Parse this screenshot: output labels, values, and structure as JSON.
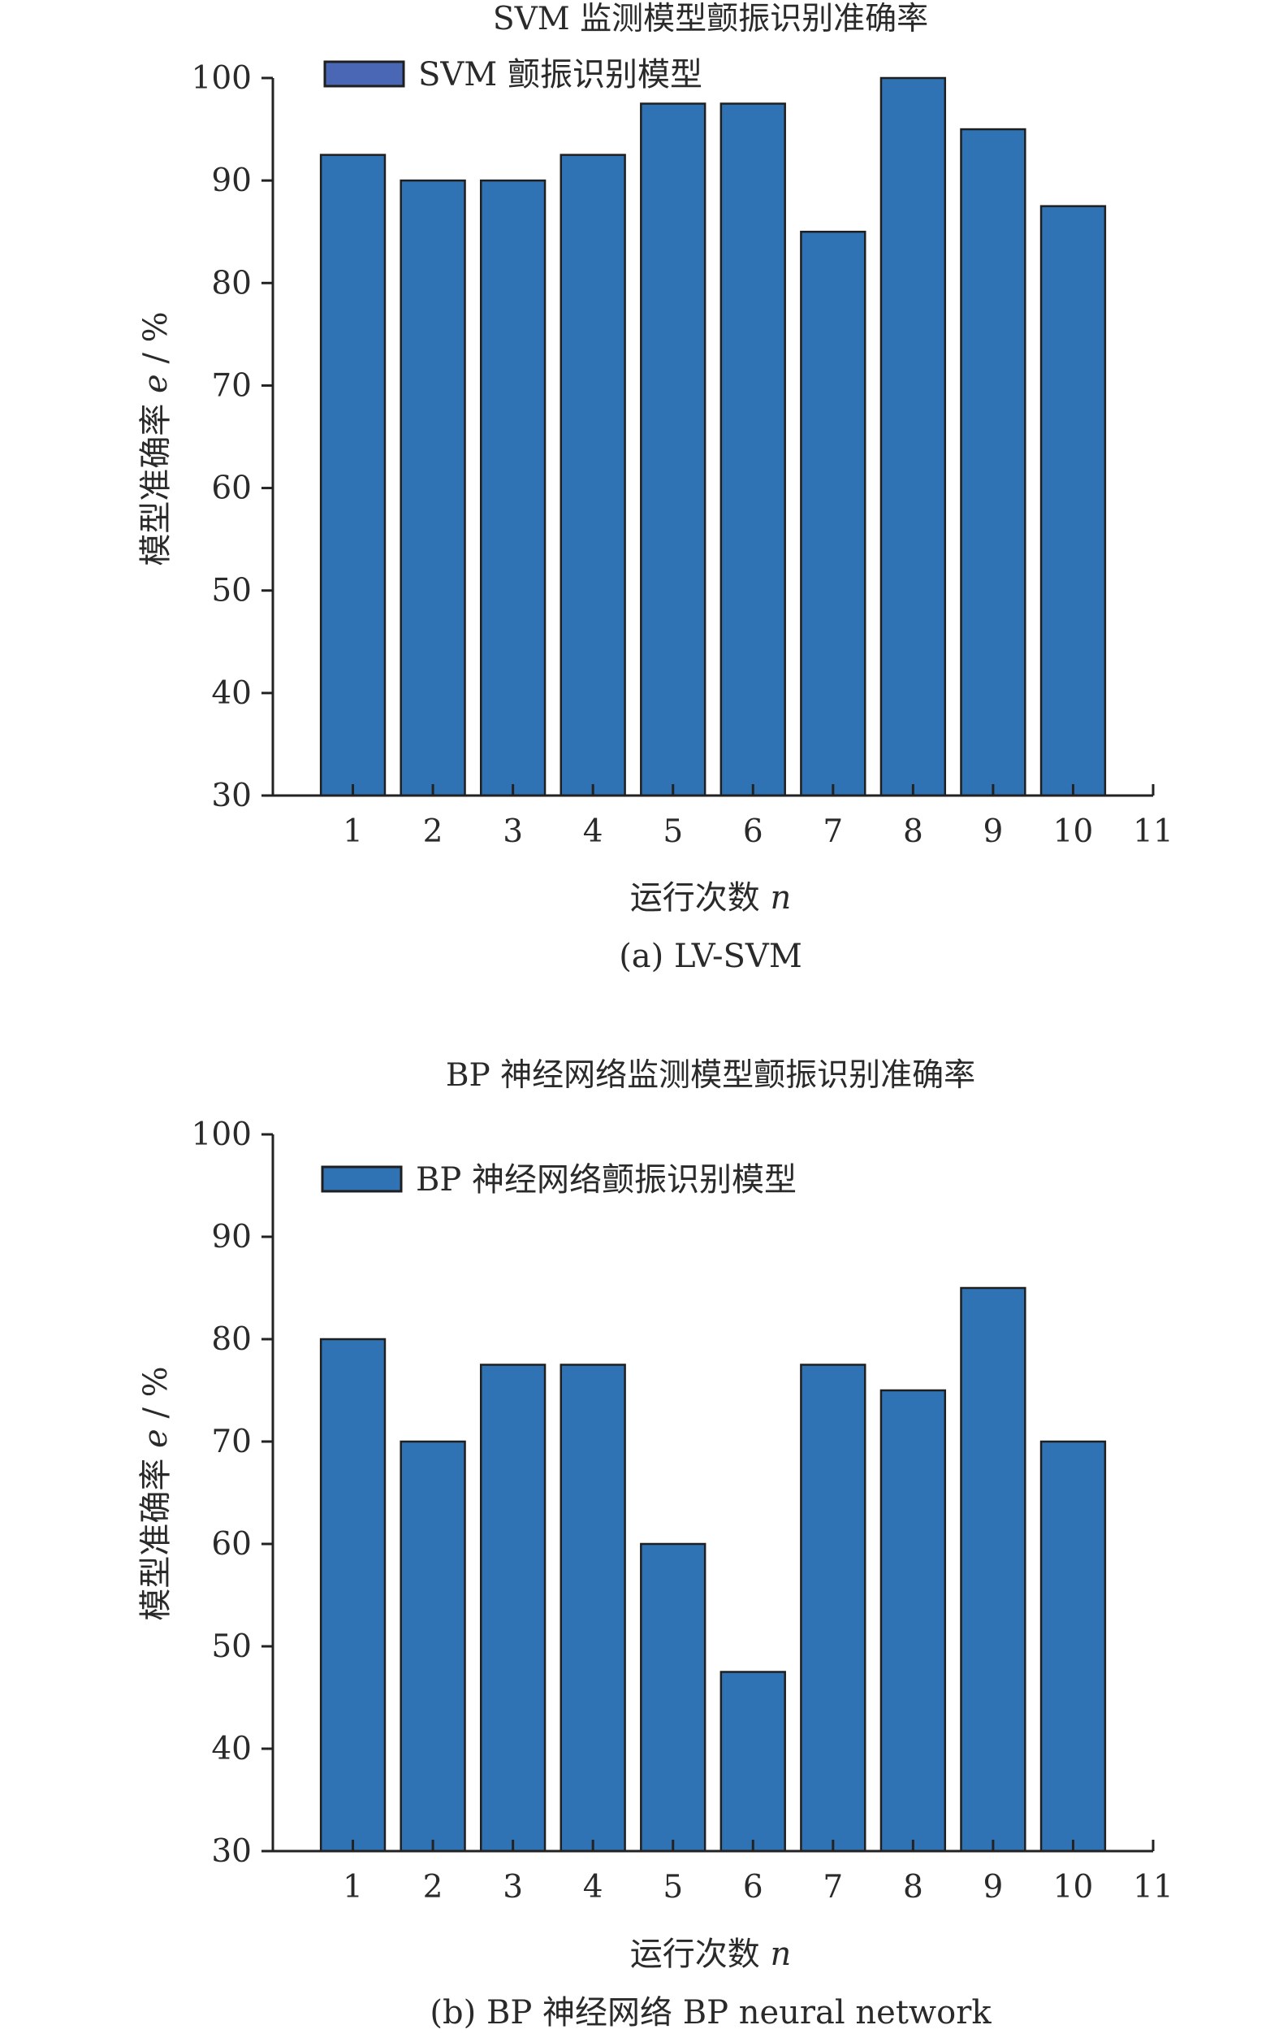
{
  "chart_data": [
    {
      "type": "bar",
      "title": "SVM 监测模型颤振识别准确率",
      "legend": "SVM 颤振识别模型",
      "legend_placement": "top-left",
      "ylabel_main": "模型准确率 ",
      "ylabel_var": "e",
      "ylabel_unit": " / %",
      "xlabel_main": "运行次数 ",
      "xlabel_var": "n",
      "caption": "(a) LV-SVM",
      "categories": [
        1,
        2,
        3,
        4,
        5,
        6,
        7,
        8,
        9,
        10
      ],
      "values": [
        92.5,
        90,
        90,
        92.5,
        97.5,
        97.5,
        85,
        100,
        95,
        87.5
      ],
      "xlim": [
        0,
        11
      ],
      "x_ticks": [
        "1",
        "2",
        "3",
        "4",
        "5",
        "6",
        "7",
        "8",
        "9",
        "10",
        "11"
      ],
      "ylim": [
        30,
        100
      ],
      "y_ticks": [
        "30",
        "40",
        "50",
        "60",
        "70",
        "80",
        "90",
        "100"
      ],
      "grid": false,
      "bar_color": "#2f73b5",
      "legend_color": "#4a67b5"
    },
    {
      "type": "bar",
      "title": "BP 神经网络监测模型颤振识别准确率",
      "legend": "BP 神经网络颤振识别模型",
      "legend_placement": "top-left",
      "ylabel_main": "模型准确率 ",
      "ylabel_var": "e",
      "ylabel_unit": " / %",
      "xlabel_main": "运行次数 ",
      "xlabel_var": "n",
      "caption": "(b) BP 神经网络 BP neural network",
      "categories": [
        1,
        2,
        3,
        4,
        5,
        6,
        7,
        8,
        9,
        10
      ],
      "values": [
        80,
        70,
        77.5,
        77.5,
        60,
        47.5,
        77.5,
        75,
        85,
        70
      ],
      "xlim": [
        0,
        11
      ],
      "x_ticks": [
        "1",
        "2",
        "3",
        "4",
        "5",
        "6",
        "7",
        "8",
        "9",
        "10",
        "11"
      ],
      "ylim": [
        30,
        100
      ],
      "y_ticks": [
        "30",
        "40",
        "50",
        "60",
        "70",
        "80",
        "90",
        "100"
      ],
      "grid": false,
      "bar_color": "#2f73b5",
      "legend_color": "#2f73b5"
    }
  ]
}
